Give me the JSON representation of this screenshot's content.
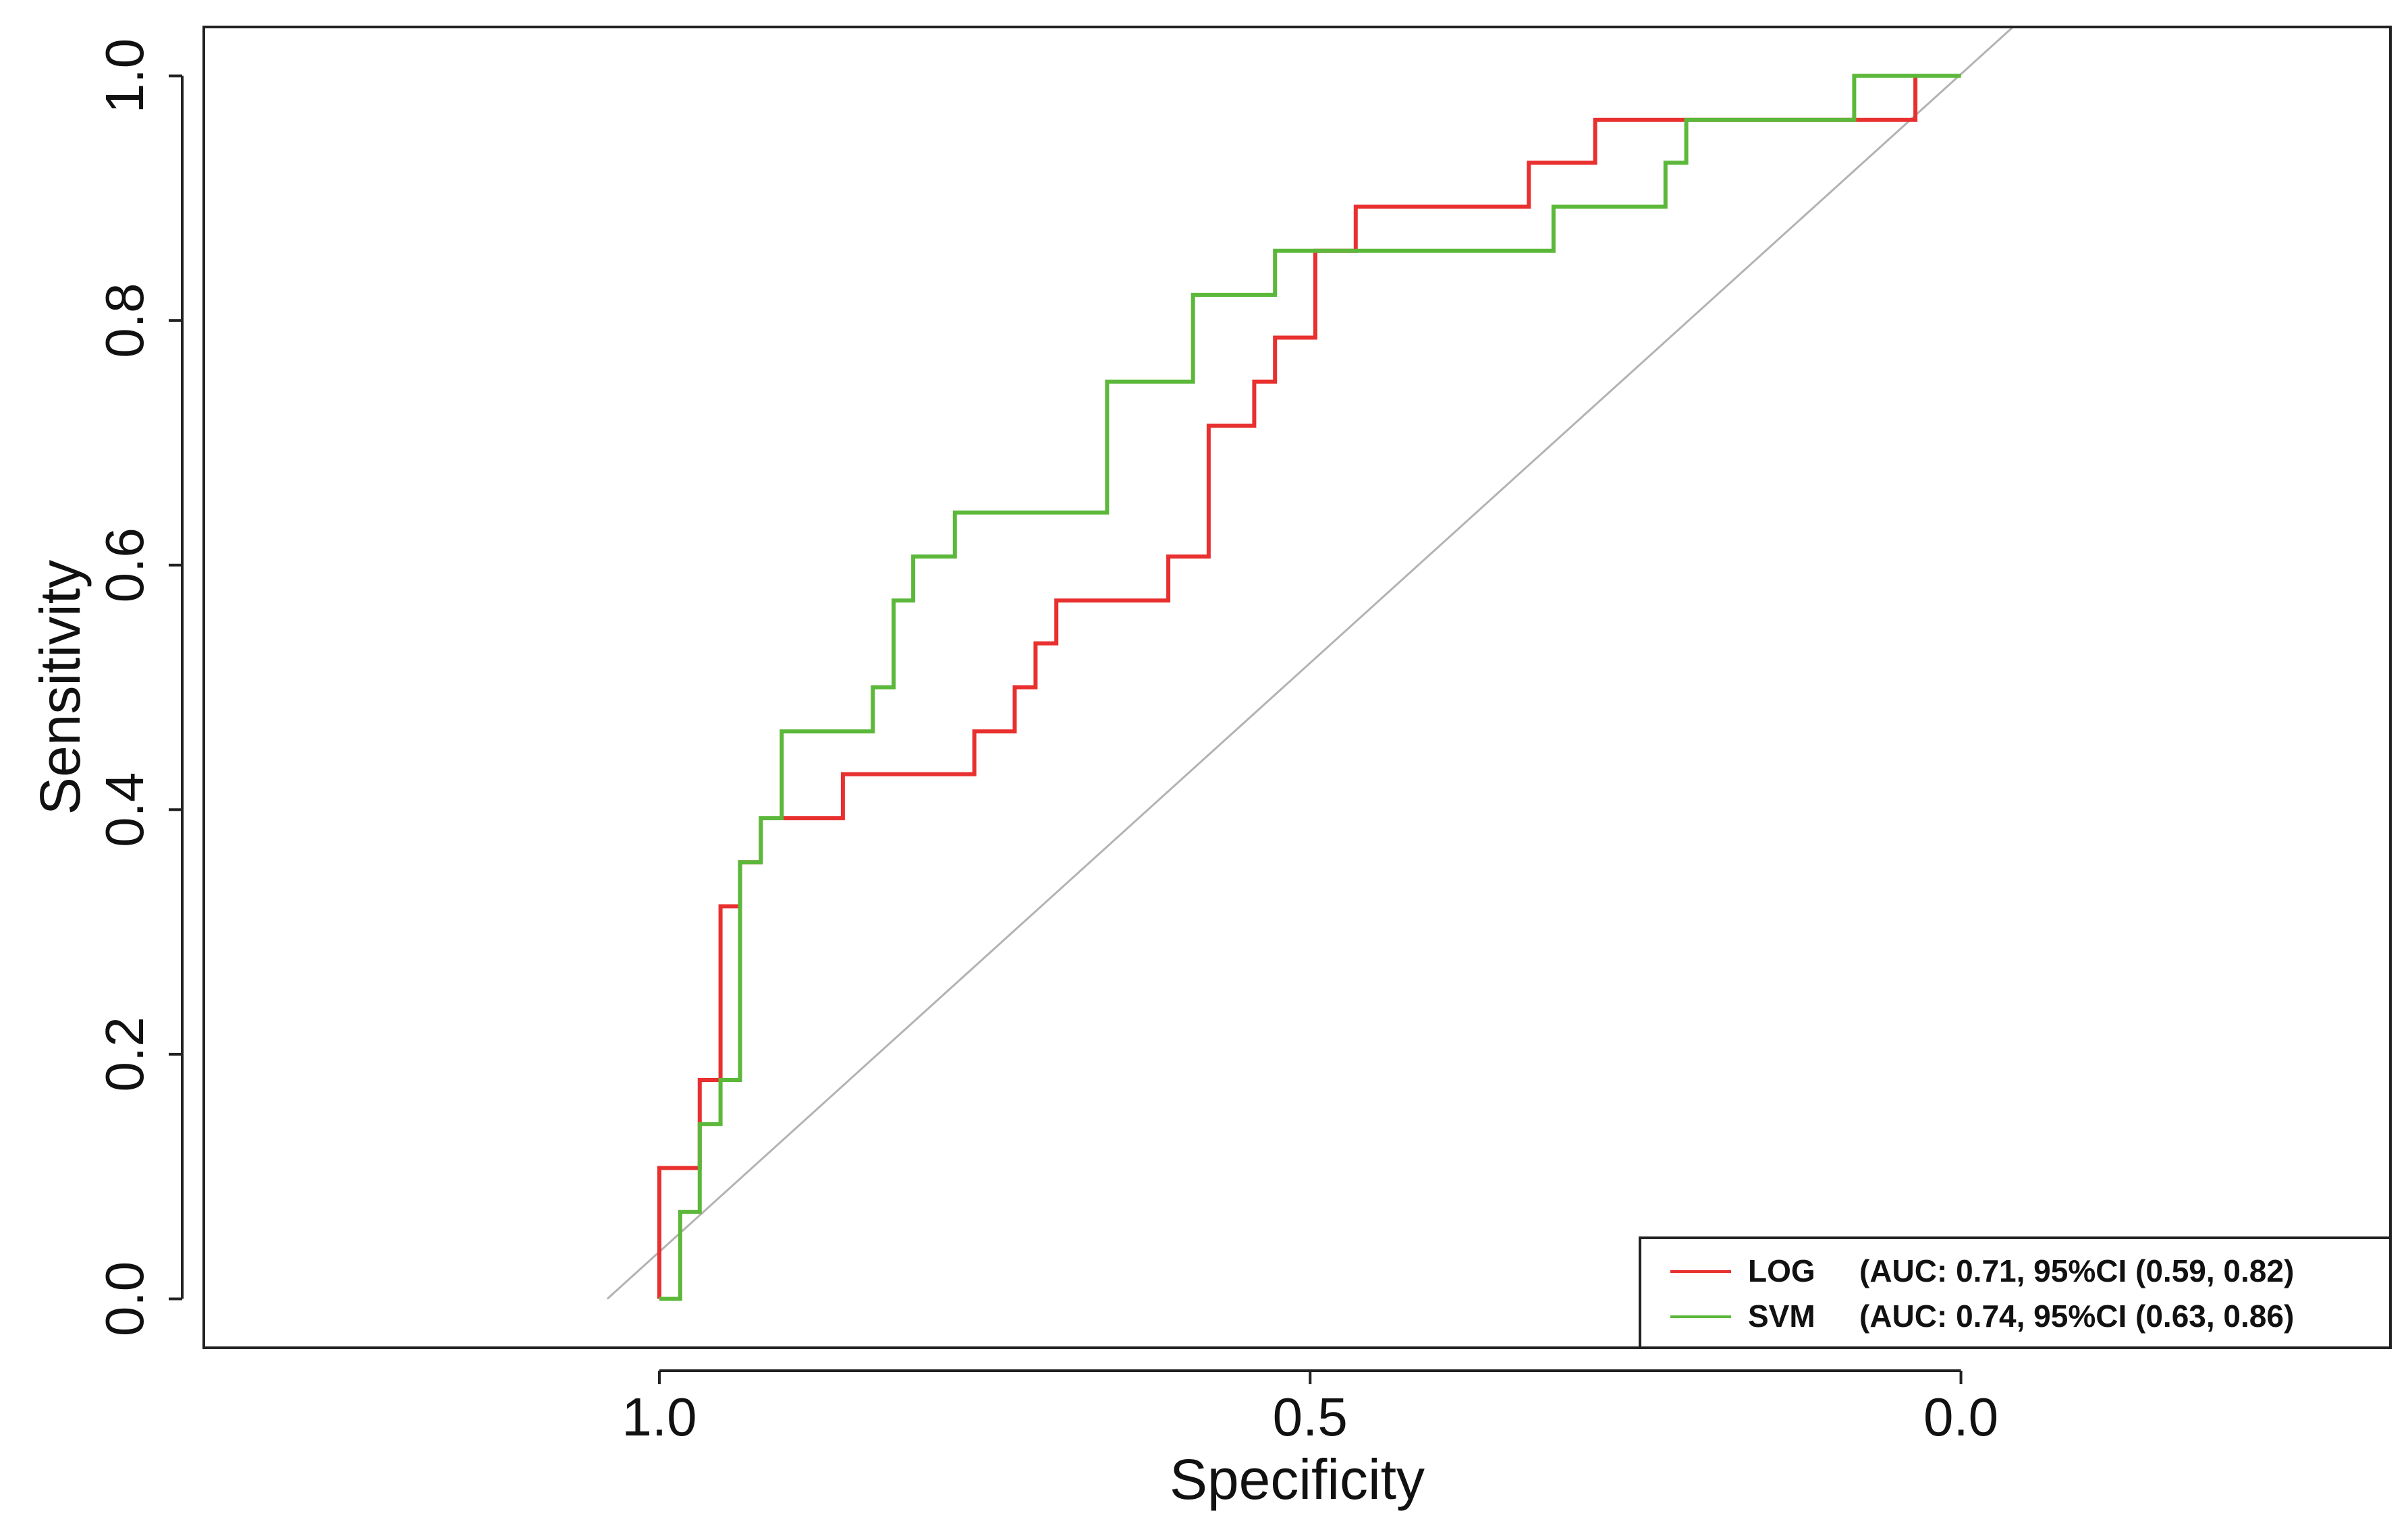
{
  "chart_data": {
    "type": "line",
    "xlabel": "Specificity",
    "ylabel": "Sensitivity",
    "xlim": [
      1.35,
      -0.33
    ],
    "ylim": [
      -0.04,
      1.04
    ],
    "x_ticks": [
      {
        "value": 1.0,
        "label": "1.0"
      },
      {
        "value": 0.5,
        "label": "0.5"
      },
      {
        "value": 0.0,
        "label": "0.0"
      }
    ],
    "y_ticks": [
      {
        "value": 0.0,
        "label": "0.0"
      },
      {
        "value": 0.2,
        "label": "0.2"
      },
      {
        "value": 0.4,
        "label": "0.4"
      },
      {
        "value": 0.6,
        "label": "0.6"
      },
      {
        "value": 0.8,
        "label": "0.8"
      },
      {
        "value": 1.0,
        "label": "1.0"
      }
    ],
    "reference_line": {
      "from": [
        1.04,
        0.0
      ],
      "to": [
        -0.04,
        1.04
      ],
      "color": "#b3b3b3"
    },
    "series": [
      {
        "name": "LOG",
        "legend_label": "LOG",
        "legend_detail": "(AUC: 0.71, 95%CI  (0.59, 0.82)",
        "color": "#e8302f",
        "points": [
          [
            1.0,
            0.0
          ],
          [
            1.0,
            0.107
          ],
          [
            0.969,
            0.107
          ],
          [
            0.969,
            0.179
          ],
          [
            0.953,
            0.179
          ],
          [
            0.953,
            0.321
          ],
          [
            0.938,
            0.321
          ],
          [
            0.938,
            0.357
          ],
          [
            0.922,
            0.357
          ],
          [
            0.922,
            0.393
          ],
          [
            0.859,
            0.393
          ],
          [
            0.859,
            0.429
          ],
          [
            0.758,
            0.429
          ],
          [
            0.758,
            0.464
          ],
          [
            0.727,
            0.464
          ],
          [
            0.727,
            0.5
          ],
          [
            0.711,
            0.5
          ],
          [
            0.711,
            0.536
          ],
          [
            0.695,
            0.536
          ],
          [
            0.695,
            0.571
          ],
          [
            0.609,
            0.571
          ],
          [
            0.609,
            0.607
          ],
          [
            0.578,
            0.607
          ],
          [
            0.578,
            0.714
          ],
          [
            0.543,
            0.714
          ],
          [
            0.543,
            0.75
          ],
          [
            0.527,
            0.75
          ],
          [
            0.527,
            0.786
          ],
          [
            0.496,
            0.786
          ],
          [
            0.496,
            0.857
          ],
          [
            0.465,
            0.857
          ],
          [
            0.465,
            0.893
          ],
          [
            0.332,
            0.893
          ],
          [
            0.332,
            0.929
          ],
          [
            0.281,
            0.929
          ],
          [
            0.281,
            0.964
          ],
          [
            0.035,
            0.964
          ],
          [
            0.035,
            1.0
          ],
          [
            0.0,
            1.0
          ]
        ]
      },
      {
        "name": "SVM",
        "legend_label": "SVM",
        "legend_detail": "(AUC: 0.74, 95%CI  (0.63, 0.86)",
        "color": "#5cb83a",
        "points": [
          [
            1.0,
            0.0
          ],
          [
            0.984,
            0.0
          ],
          [
            0.984,
            0.071
          ],
          [
            0.969,
            0.071
          ],
          [
            0.969,
            0.143
          ],
          [
            0.953,
            0.143
          ],
          [
            0.953,
            0.179
          ],
          [
            0.938,
            0.179
          ],
          [
            0.938,
            0.357
          ],
          [
            0.922,
            0.357
          ],
          [
            0.922,
            0.393
          ],
          [
            0.906,
            0.393
          ],
          [
            0.906,
            0.464
          ],
          [
            0.836,
            0.464
          ],
          [
            0.836,
            0.5
          ],
          [
            0.82,
            0.5
          ],
          [
            0.82,
            0.571
          ],
          [
            0.805,
            0.571
          ],
          [
            0.805,
            0.607
          ],
          [
            0.773,
            0.607
          ],
          [
            0.773,
            0.643
          ],
          [
            0.656,
            0.643
          ],
          [
            0.656,
            0.75
          ],
          [
            0.59,
            0.75
          ],
          [
            0.59,
            0.821
          ],
          [
            0.527,
            0.821
          ],
          [
            0.527,
            0.857
          ],
          [
            0.313,
            0.857
          ],
          [
            0.313,
            0.893
          ],
          [
            0.227,
            0.893
          ],
          [
            0.227,
            0.929
          ],
          [
            0.211,
            0.929
          ],
          [
            0.211,
            0.964
          ],
          [
            0.082,
            0.964
          ],
          [
            0.082,
            1.0
          ],
          [
            0.0,
            1.0
          ]
        ]
      }
    ]
  }
}
